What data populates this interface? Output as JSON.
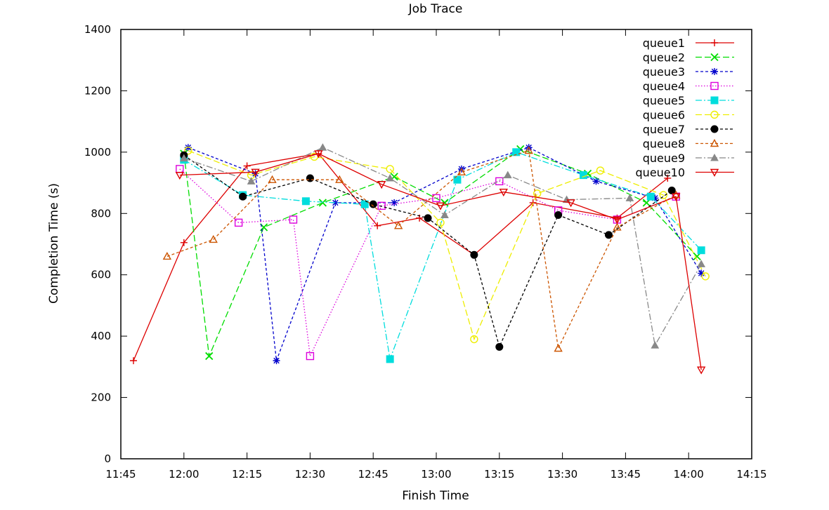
{
  "chart_data": {
    "type": "line",
    "title": "Job Trace",
    "xlabel": "Finish Time",
    "ylabel": "Completion Time (s)",
    "xlim": [
      "11:45",
      "14:15"
    ],
    "ylim": [
      0,
      1400
    ],
    "x_ticks": [
      "11:45",
      "12:00",
      "12:15",
      "12:30",
      "12:45",
      "13:00",
      "13:15",
      "13:30",
      "13:45",
      "14:00",
      "14:15"
    ],
    "y_ticks": [
      0,
      200,
      400,
      600,
      800,
      1000,
      1200,
      1400
    ],
    "grid": false,
    "legend_position": "top-right",
    "series": [
      {
        "name": "queue1",
        "color": "#dd0000",
        "dash": "solid",
        "marker": "plus",
        "points": [
          [
            "11:48",
            320
          ],
          [
            "12:00",
            705
          ],
          [
            "12:15",
            955
          ],
          [
            "12:32",
            995
          ],
          [
            "12:46",
            760
          ],
          [
            "12:56",
            785
          ],
          [
            "13:09",
            665
          ],
          [
            "13:23",
            835
          ],
          [
            "13:43",
            785
          ],
          [
            "13:55",
            915
          ]
        ]
      },
      {
        "name": "queue2",
        "color": "#00dd00",
        "dash": "long",
        "marker": "x",
        "points": [
          [
            "12:00",
            995
          ],
          [
            "12:06",
            335
          ],
          [
            "12:19",
            755
          ],
          [
            "12:33",
            835
          ],
          [
            "12:50",
            920
          ],
          [
            "13:02",
            835
          ],
          [
            "13:20",
            1010
          ],
          [
            "13:36",
            930
          ],
          [
            "13:50",
            835
          ],
          [
            "14:02",
            660
          ]
        ]
      },
      {
        "name": "queue3",
        "color": "#0000cc",
        "dash": "short",
        "marker": "star",
        "points": [
          [
            "12:01",
            1015
          ],
          [
            "12:17",
            930
          ],
          [
            "12:22",
            320
          ],
          [
            "12:36",
            835
          ],
          [
            "12:50",
            835
          ],
          [
            "13:06",
            945
          ],
          [
            "13:22",
            1015
          ],
          [
            "13:38",
            905
          ],
          [
            "13:52",
            850
          ],
          [
            "14:03",
            605
          ]
        ]
      },
      {
        "name": "queue4",
        "color": "#dd00dd",
        "dash": "dot",
        "marker": "square",
        "points": [
          [
            "11:59",
            945
          ],
          [
            "12:13",
            770
          ],
          [
            "12:26",
            780
          ],
          [
            "12:30",
            335
          ],
          [
            "12:47",
            825
          ],
          [
            "13:00",
            850
          ],
          [
            "13:15",
            905
          ],
          [
            "13:29",
            810
          ],
          [
            "13:43",
            780
          ],
          [
            "13:57",
            855
          ]
        ]
      },
      {
        "name": "queue5",
        "color": "#00dddd",
        "dash": "dashdot",
        "marker": "filled-square",
        "points": [
          [
            "12:00",
            975
          ],
          [
            "12:14",
            860
          ],
          [
            "12:29",
            840
          ],
          [
            "12:43",
            830
          ],
          [
            "12:49",
            325
          ],
          [
            "13:05",
            910
          ],
          [
            "13:19",
            1000
          ],
          [
            "13:35",
            925
          ],
          [
            "13:51",
            855
          ],
          [
            "14:03",
            680
          ]
        ]
      },
      {
        "name": "queue6",
        "color": "#eeee00",
        "dash": "long",
        "marker": "circle",
        "points": [
          [
            "12:01",
            1005
          ],
          [
            "12:16",
            925
          ],
          [
            "12:31",
            985
          ],
          [
            "12:49",
            945
          ],
          [
            "13:01",
            770
          ],
          [
            "13:09",
            390
          ],
          [
            "13:24",
            865
          ],
          [
            "13:39",
            940
          ],
          [
            "13:54",
            860
          ],
          [
            "14:04",
            595
          ]
        ]
      },
      {
        "name": "queue7",
        "color": "#000000",
        "dash": "short",
        "marker": "filled-circle",
        "points": [
          [
            "12:00",
            990
          ],
          [
            "12:14",
            855
          ],
          [
            "12:30",
            915
          ],
          [
            "12:45",
            830
          ],
          [
            "12:58",
            785
          ],
          [
            "13:09",
            665
          ],
          [
            "13:15",
            365
          ],
          [
            "13:29",
            795
          ],
          [
            "13:41",
            730
          ],
          [
            "13:56",
            875
          ]
        ]
      },
      {
        "name": "queue8",
        "color": "#cc5500",
        "dash": "short",
        "marker": "triangle",
        "points": [
          [
            "11:56",
            660
          ],
          [
            "12:07",
            715
          ],
          [
            "12:21",
            910
          ],
          [
            "12:37",
            910
          ],
          [
            "12:51",
            760
          ],
          [
            "13:06",
            935
          ],
          [
            "13:22",
            1005
          ],
          [
            "13:29",
            360
          ],
          [
            "13:43",
            755
          ],
          [
            "13:57",
            860
          ]
        ]
      },
      {
        "name": "queue9",
        "color": "#888888",
        "dash": "dashdot",
        "marker": "filled-triangle",
        "points": [
          [
            "12:00",
            980
          ],
          [
            "12:16",
            905
          ],
          [
            "12:33",
            1015
          ],
          [
            "12:49",
            915
          ],
          [
            "13:02",
            795
          ],
          [
            "13:17",
            925
          ],
          [
            "13:31",
            845
          ],
          [
            "13:46",
            850
          ],
          [
            "13:52",
            370
          ],
          [
            "14:03",
            635
          ]
        ]
      },
      {
        "name": "queue10",
        "color": "#dd0000",
        "dash": "solid",
        "marker": "down-triangle",
        "points": [
          [
            "11:59",
            925
          ],
          [
            "12:17",
            935
          ],
          [
            "12:32",
            995
          ],
          [
            "12:47",
            895
          ],
          [
            "13:01",
            825
          ],
          [
            "13:16",
            870
          ],
          [
            "13:32",
            835
          ],
          [
            "13:43",
            780
          ],
          [
            "13:57",
            855
          ],
          [
            "14:03",
            290
          ]
        ]
      }
    ]
  }
}
